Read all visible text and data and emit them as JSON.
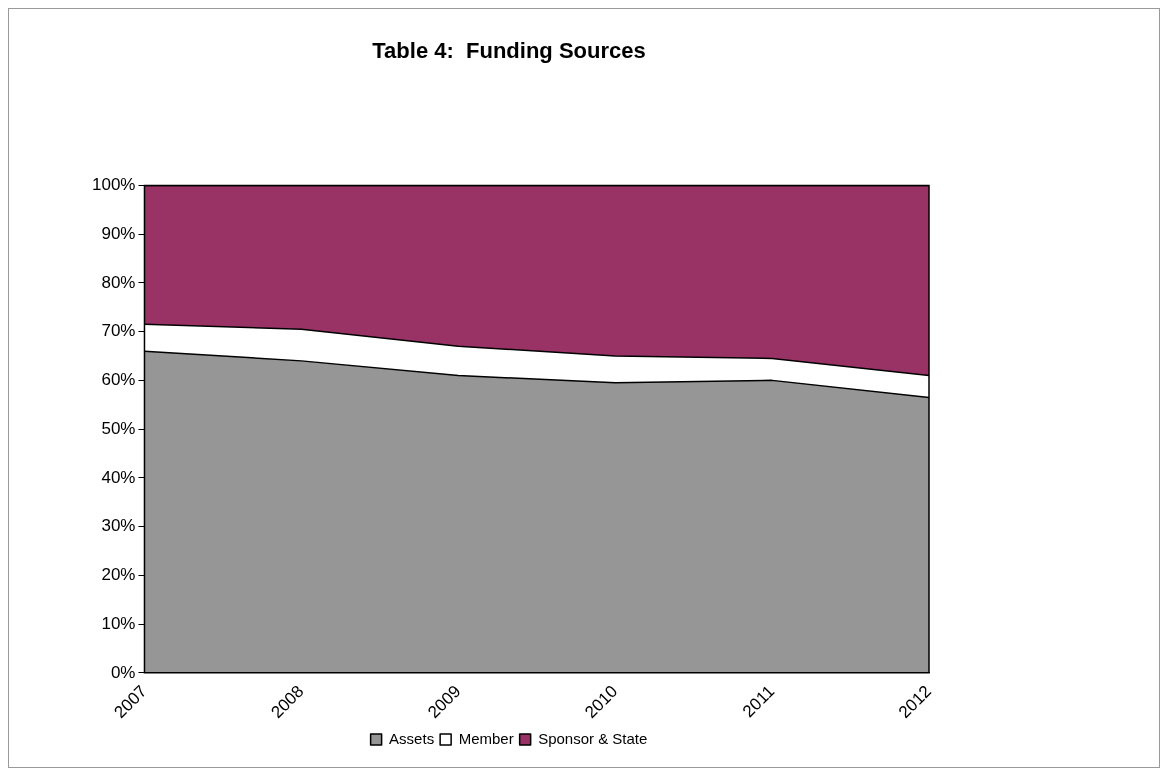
{
  "chart_data": {
    "type": "area",
    "title": "Table 4:  Funding Sources",
    "stacked": true,
    "categories": [
      "2007",
      "2008",
      "2009",
      "2010",
      "2011",
      "2012"
    ],
    "series": [
      {
        "name": "Assets",
        "color": "#969696",
        "values": [
          66,
          64,
          61,
          59.5,
          60,
          56.5
        ]
      },
      {
        "name": "Member",
        "color": "#ffffff",
        "values": [
          5.5,
          6.5,
          6,
          5.5,
          4.5,
          4.5
        ]
      },
      {
        "name": "Sponsor & State",
        "color": "#993366",
        "values": [
          28.5,
          29.5,
          33,
          35,
          35.5,
          39
        ]
      }
    ],
    "ylim": [
      0,
      100
    ],
    "yticks": [
      {
        "value": 0,
        "label": "0%"
      },
      {
        "value": 10,
        "label": "10%"
      },
      {
        "value": 20,
        "label": "20%"
      },
      {
        "value": 30,
        "label": "30%"
      },
      {
        "value": 40,
        "label": "40%"
      },
      {
        "value": 50,
        "label": "50%"
      },
      {
        "value": 60,
        "label": "60%"
      },
      {
        "value": 70,
        "label": "70%"
      },
      {
        "value": 80,
        "label": "80%"
      },
      {
        "value": 90,
        "label": "90%"
      },
      {
        "value": 100,
        "label": "100%"
      }
    ],
    "grid": false,
    "legend": "bottom"
  }
}
